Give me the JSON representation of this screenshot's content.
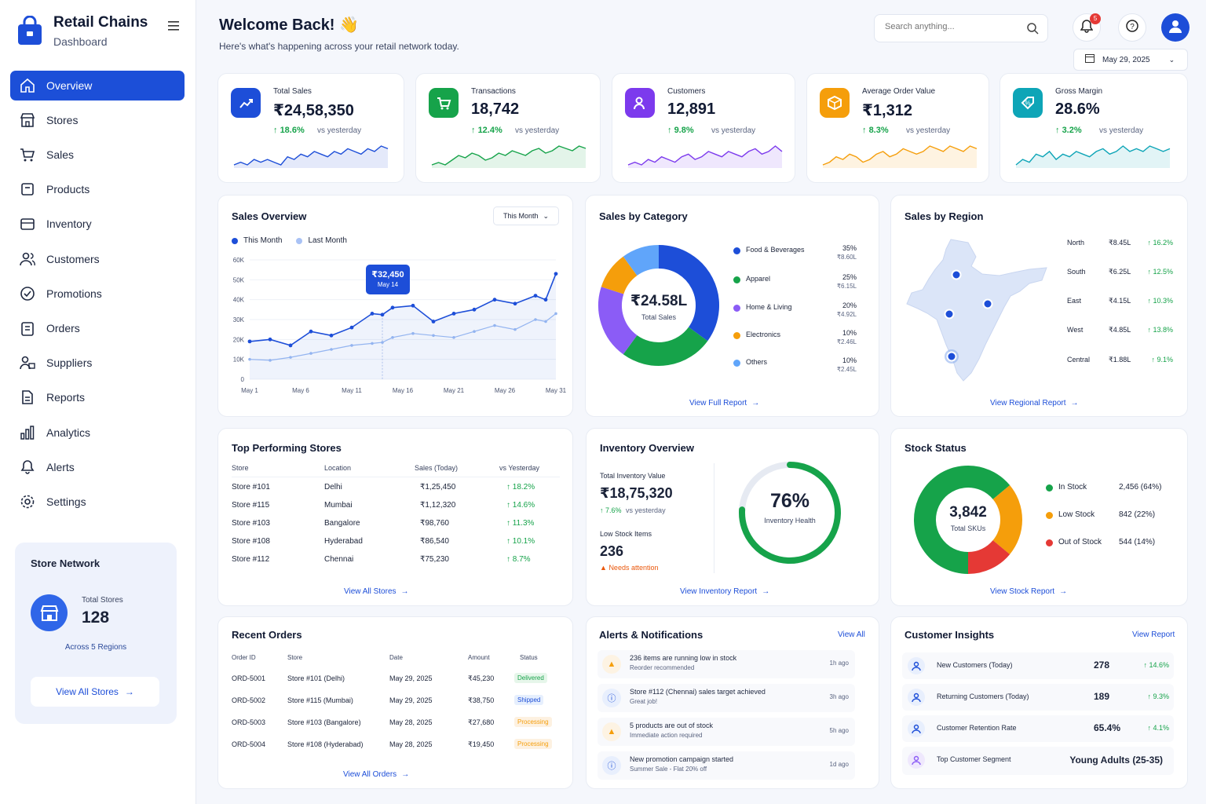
{
  "brand": {
    "title": "Retail Chains",
    "subtitle": "Dashboard"
  },
  "nav": [
    {
      "label": "Overview",
      "icon": "home-icon",
      "active": true
    },
    {
      "label": "Stores",
      "icon": "store-icon"
    },
    {
      "label": "Sales",
      "icon": "cart-icon"
    },
    {
      "label": "Products",
      "icon": "box-icon"
    },
    {
      "label": "Inventory",
      "icon": "inventory-icon"
    },
    {
      "label": "Customers",
      "icon": "users-icon"
    },
    {
      "label": "Promotions",
      "icon": "promotion-icon"
    },
    {
      "label": "Orders",
      "icon": "clipboard-icon"
    },
    {
      "label": "Suppliers",
      "icon": "suppliers-icon"
    },
    {
      "label": "Reports",
      "icon": "document-icon"
    },
    {
      "label": "Analytics",
      "icon": "bar-chart-icon"
    },
    {
      "label": "Alerts",
      "icon": "bell-icon"
    },
    {
      "label": "Settings",
      "icon": "gear-icon"
    }
  ],
  "store_network": {
    "title": "Store Network",
    "total_label": "Total Stores",
    "total": "128",
    "regions": "Across 5 Regions",
    "button": "View All Stores"
  },
  "header": {
    "welcome": "Welcome Back! 👋",
    "subtitle": "Here's what's happening across your retail network today.",
    "search_placeholder": "Search anything...",
    "notif_count": "5",
    "date": "May 29, 2025"
  },
  "kpis": [
    {
      "label": "Total Sales",
      "value": "₹24,58,350",
      "change": "18.6%",
      "vs": "vs yesterday",
      "color": "#1d4ed8",
      "spark": [
        5,
        6,
        5,
        7,
        6,
        7,
        6,
        5,
        8,
        7,
        9,
        8,
        10,
        9,
        8,
        10,
        9,
        11,
        10,
        9,
        11,
        10,
        12,
        11
      ]
    },
    {
      "label": "Transactions",
      "value": "18,742",
      "change": "12.4%",
      "vs": "vs yesterday",
      "color": "#16a34a",
      "spark": [
        4,
        5,
        4,
        6,
        8,
        7,
        9,
        8,
        6,
        7,
        9,
        8,
        10,
        9,
        8,
        10,
        11,
        9,
        10,
        12,
        11,
        10,
        12,
        11
      ]
    },
    {
      "label": "Customers",
      "value": "12,891",
      "change": "9.8%",
      "vs": "vs yesterday",
      "color": "#7c3aed",
      "spark": [
        5,
        6,
        5,
        7,
        6,
        8,
        7,
        6,
        8,
        9,
        7,
        8,
        10,
        9,
        8,
        10,
        9,
        8,
        10,
        11,
        9,
        10,
        12,
        10
      ]
    },
    {
      "label": "Average Order Value",
      "value": "₹1,312",
      "change": "8.3%",
      "vs": "vs yesterday",
      "color": "#f59e0b",
      "spark": [
        4,
        5,
        7,
        6,
        8,
        7,
        5,
        6,
        8,
        9,
        7,
        8,
        10,
        9,
        8,
        9,
        11,
        10,
        9,
        11,
        10,
        9,
        11,
        10
      ]
    },
    {
      "label": "Gross Margin",
      "value": "28.6%",
      "change": "3.2%",
      "vs": "vs yesterday",
      "color": "#0ea5b7",
      "spark": [
        4,
        6,
        5,
        8,
        7,
        9,
        6,
        8,
        7,
        9,
        8,
        7,
        9,
        10,
        8,
        9,
        11,
        9,
        10,
        9,
        11,
        10,
        9,
        10
      ]
    }
  ],
  "sales_overview": {
    "title": "Sales Overview",
    "range": "This Month",
    "legend": [
      "This Month",
      "Last Month"
    ],
    "tooltip_value": "₹32,450",
    "tooltip_date": "May 14"
  },
  "chart_data": {
    "type": "line",
    "title": "Sales Overview",
    "x_ticks": [
      "May 1",
      "May 6",
      "May 11",
      "May 16",
      "May 21",
      "May 26",
      "May 31"
    ],
    "y_ticks": [
      "0",
      "10K",
      "20K",
      "30K",
      "40K",
      "50K",
      "60K"
    ],
    "ylim": [
      0,
      60000
    ],
    "x": [
      1,
      3,
      5,
      7,
      9,
      11,
      13,
      14,
      15,
      17,
      19,
      21,
      23,
      25,
      27,
      29,
      30,
      31
    ],
    "series": [
      {
        "name": "This Month",
        "color": "#1d4ed8",
        "values": [
          19000,
          20000,
          17000,
          24000,
          22000,
          26000,
          33000,
          32450,
          36000,
          37000,
          29000,
          33000,
          35000,
          40000,
          38000,
          42000,
          40000,
          53000
        ]
      },
      {
        "name": "Last Month",
        "color": "#93b4f0",
        "values": [
          10000,
          9500,
          11000,
          13000,
          15000,
          17000,
          18000,
          18500,
          21000,
          23000,
          22000,
          21000,
          24000,
          27000,
          25000,
          30000,
          29000,
          33000
        ]
      }
    ]
  },
  "category": {
    "title": "Sales by Category",
    "center_value": "₹24.58L",
    "center_label": "Total Sales",
    "link": "View Full Report",
    "items": [
      {
        "name": "Food & Beverages",
        "pct": "35%",
        "amt": "₹8.60L",
        "color": "#1d4ed8",
        "share": 35
      },
      {
        "name": "Apparel",
        "pct": "25%",
        "amt": "₹6.15L",
        "color": "#16a34a",
        "share": 25
      },
      {
        "name": "Home & Living",
        "pct": "20%",
        "amt": "₹4.92L",
        "color": "#8b5cf6",
        "share": 20
      },
      {
        "name": "Electronics",
        "pct": "10%",
        "amt": "₹2.46L",
        "color": "#f59e0b",
        "share": 10
      },
      {
        "name": "Others",
        "pct": "10%",
        "amt": "₹2.45L",
        "color": "#60a5fa",
        "share": 10
      }
    ]
  },
  "region": {
    "title": "Sales by Region",
    "link": "View Regional Report",
    "items": [
      {
        "name": "North",
        "amt": "₹8.45L",
        "ch": "16.2%"
      },
      {
        "name": "South",
        "amt": "₹6.25L",
        "ch": "12.5%"
      },
      {
        "name": "East",
        "amt": "₹4.15L",
        "ch": "10.3%"
      },
      {
        "name": "West",
        "amt": "₹4.85L",
        "ch": "13.8%"
      },
      {
        "name": "Central",
        "amt": "₹1.88L",
        "ch": "9.1%"
      }
    ]
  },
  "top_stores": {
    "title": "Top Performing Stores",
    "headers": [
      "Store",
      "Location",
      "Sales (Today)",
      "vs Yesterday"
    ],
    "rows": [
      [
        "Store #101",
        "Delhi",
        "₹1,25,450",
        "18.2%"
      ],
      [
        "Store #115",
        "Mumbai",
        "₹1,12,320",
        "14.6%"
      ],
      [
        "Store #103",
        "Bangalore",
        "₹98,760",
        "11.3%"
      ],
      [
        "Store #108",
        "Hyderabad",
        "₹86,540",
        "10.1%"
      ],
      [
        "Store #112",
        "Chennai",
        "₹75,230",
        "8.7%"
      ]
    ],
    "link": "View All Stores"
  },
  "inventory": {
    "title": "Inventory Overview",
    "value_label": "Total Inventory Value",
    "value": "₹18,75,320",
    "change": "7.6%",
    "vs": "vs yesterday",
    "low_label": "Low Stock Items",
    "low": "236",
    "warn": "Needs attention",
    "health": "76%",
    "health_label": "Inventory Health",
    "health_frac": 0.76,
    "link": "View Inventory Report"
  },
  "stock": {
    "title": "Stock Status",
    "total": "3,842",
    "total_label": "Total SKUs",
    "items": [
      {
        "name": "In Stock",
        "val": "2,456 (64%)",
        "color": "#16a34a",
        "share": 64
      },
      {
        "name": "Low Stock",
        "val": "842 (22%)",
        "color": "#f59e0b",
        "share": 22
      },
      {
        "name": "Out of Stock",
        "val": "544 (14%)",
        "color": "#e53935",
        "share": 14
      }
    ],
    "link": "View Stock Report"
  },
  "orders": {
    "title": "Recent Orders",
    "headers": [
      "Order ID",
      "Store",
      "Date",
      "Amount",
      "Status"
    ],
    "rows": [
      [
        "ORD-5001",
        "Store #101 (Delhi)",
        "May 29, 2025",
        "₹45,230",
        "Delivered"
      ],
      [
        "ORD-5002",
        "Store #115 (Mumbai)",
        "May 29, 2025",
        "₹38,750",
        "Shipped"
      ],
      [
        "ORD-5003",
        "Store #103 (Bangalore)",
        "May 28, 2025",
        "₹27,680",
        "Processing"
      ],
      [
        "ORD-5004",
        "Store #108 (Hyderabad)",
        "May 28, 2025",
        "₹19,450",
        "Processing"
      ]
    ],
    "link": "View All Orders"
  },
  "alerts": {
    "title": "Alerts & Notifications",
    "view_all": "View All",
    "items": [
      {
        "type": "warning",
        "title": "236 items are running low in stock",
        "sub": "Reorder recommended",
        "time": "1h ago"
      },
      {
        "type": "info",
        "title": "Store #112 (Chennai) sales target achieved",
        "sub": "Great job!",
        "time": "3h ago"
      },
      {
        "type": "warning",
        "title": "5 products are out of stock",
        "sub": "Immediate action required",
        "time": "5h ago"
      },
      {
        "type": "info",
        "title": "New promotion campaign started",
        "sub": "Summer Sale - Flat 20% off",
        "time": "1d ago"
      }
    ]
  },
  "insights": {
    "title": "Customer Insights",
    "link": "View Report",
    "items": [
      {
        "label": "New Customers (Today)",
        "value": "278",
        "ch": "14.6%"
      },
      {
        "label": "Returning Customers (Today)",
        "value": "189",
        "ch": "9.3%"
      },
      {
        "label": "Customer Retention Rate",
        "value": "65.4%",
        "ch": "4.1%"
      },
      {
        "label": "Top Customer Segment",
        "value": "Young Adults (25-35)",
        "ch": ""
      }
    ]
  }
}
